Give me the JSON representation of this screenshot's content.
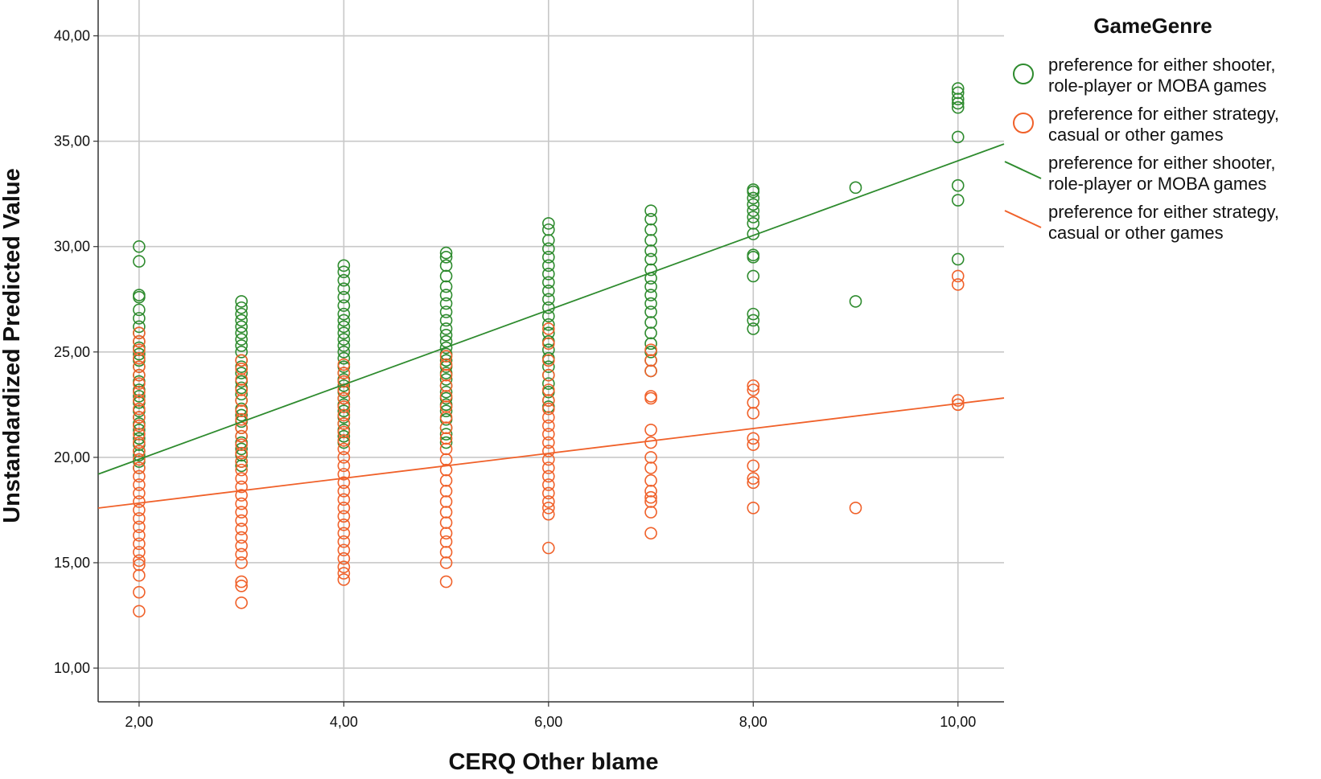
{
  "chart_data": {
    "type": "scatter",
    "title": "",
    "xlabel": "CERQ Other blame",
    "ylabel": "Unstandardized Predicted Value",
    "xlim": [
      1.6,
      10.45
    ],
    "ylim": [
      8.4,
      41.7
    ],
    "x_ticks": [
      2,
      4,
      6,
      8,
      10
    ],
    "x_tick_labels": [
      "2,00",
      "4,00",
      "6,00",
      "8,00",
      "10,00"
    ],
    "y_ticks": [
      10,
      15,
      20,
      25,
      30,
      35,
      40
    ],
    "y_tick_labels": [
      "10,00",
      "15,00",
      "20,00",
      "25,00",
      "30,00",
      "35,00",
      "40,00"
    ],
    "grid": true,
    "legend": {
      "title": "GameGenre",
      "placement": "right",
      "entries": [
        {
          "label_line1": "preference for either shooter,",
          "label_line2": "role-player or MOBA games",
          "marker": "circle",
          "series": 0
        },
        {
          "label_line1": "preference for either strategy,",
          "label_line2": "casual or other games",
          "marker": "circle",
          "series": 1
        },
        {
          "label_line1": "preference for either shooter,",
          "label_line2": "role-player or MOBA games",
          "marker": "line",
          "series": 0
        },
        {
          "label_line1": "preference for either strategy,",
          "label_line2": "casual or other games",
          "marker": "line",
          "series": 1
        }
      ]
    },
    "series": [
      {
        "name": "preference for either shooter, role-player or MOBA games",
        "color": "#2e8b2e",
        "fit_line": {
          "slope": 1.77,
          "intercept": 16.37
        },
        "points": [
          {
            "x": 2,
            "y": [
              30.0,
              29.3,
              27.7,
              27.6,
              27.0,
              26.6,
              26.2,
              25.9,
              25.5,
              25.2,
              24.9,
              24.6,
              24.3,
              23.9,
              23.6,
              23.2,
              22.9,
              22.6,
              22.2,
              21.9,
              21.6,
              21.3,
              20.9,
              20.6,
              20.3,
              20.1,
              19.8,
              19.5
            ]
          },
          {
            "x": 3,
            "y": [
              27.4,
              27.1,
              26.8,
              26.5,
              26.2,
              25.9,
              25.6,
              25.3,
              25.0,
              24.6,
              24.3,
              24.0,
              23.6,
              23.3,
              23.0,
              22.7,
              22.3,
              22.0,
              21.7,
              21.4,
              21.0,
              20.7,
              20.4,
              20.1,
              19.8,
              19.6
            ]
          },
          {
            "x": 4,
            "y": [
              29.1,
              28.8,
              28.4,
              28.0,
              27.6,
              27.2,
              26.8,
              26.5,
              26.2,
              25.9,
              25.6,
              25.3,
              25.0,
              24.7,
              24.3,
              24.0,
              23.7,
              23.4,
              23.1,
              22.8,
              22.5,
              22.2,
              21.9,
              21.6,
              21.3,
              21.0,
              20.7
            ]
          },
          {
            "x": 5,
            "y": [
              29.7,
              29.5,
              29.1,
              28.6,
              28.1,
              27.7,
              27.3,
              26.9,
              26.5,
              26.1,
              25.8,
              25.5,
              25.2,
              24.9,
              24.6,
              24.3,
              24.0,
              23.7,
              23.4,
              23.1,
              22.8,
              22.5,
              22.2,
              21.8,
              21.4,
              21.1,
              20.7
            ]
          },
          {
            "x": 6,
            "y": [
              31.1,
              30.8,
              30.3,
              29.9,
              29.5,
              29.1,
              28.7,
              28.3,
              27.9,
              27.5,
              27.1,
              26.7,
              26.3,
              25.9,
              25.5,
              25.1,
              24.7,
              24.3,
              23.9,
              23.5,
              23.1,
              22.7,
              22.4
            ]
          },
          {
            "x": 7,
            "y": [
              31.7,
              31.3,
              30.8,
              30.3,
              29.8,
              29.4,
              28.9,
              28.5,
              28.1,
              27.7,
              27.3,
              26.9,
              26.4,
              25.9,
              25.4,
              25.0,
              24.6,
              24.1
            ]
          },
          {
            "x": 8,
            "y": [
              32.7,
              32.6,
              32.3,
              32.0,
              31.7,
              31.4,
              31.1,
              30.6,
              29.6,
              29.5,
              28.6,
              26.8,
              26.5,
              26.1
            ]
          },
          {
            "x": 9,
            "y": [
              32.8,
              27.4
            ]
          },
          {
            "x": 10,
            "y": [
              37.5,
              37.3,
              37.0,
              36.8,
              36.6,
              35.2,
              32.9,
              32.2,
              29.4
            ]
          }
        ]
      },
      {
        "name": "preference for either strategy, casual or other games",
        "color": "#f0612a",
        "fit_line": {
          "slope": 0.59,
          "intercept": 16.65
        },
        "points": [
          {
            "x": 2,
            "y": [
              25.9,
              25.5,
              25.1,
              24.7,
              24.3,
              23.9,
              23.5,
              23.1,
              22.7,
              22.3,
              21.9,
              21.5,
              21.1,
              20.7,
              20.3,
              19.9,
              19.5,
              19.1,
              18.7,
              18.3,
              17.9,
              17.5,
              17.1,
              16.7,
              16.3,
              15.9,
              15.5,
              15.1,
              14.9,
              14.4,
              13.6,
              12.7
            ]
          },
          {
            "x": 3,
            "y": [
              24.6,
              24.2,
              23.7,
              23.2,
              22.7,
              22.2,
              21.8,
              21.4,
              21.0,
              20.6,
              20.2,
              19.8,
              19.4,
              19.0,
              18.6,
              18.2,
              17.8,
              17.4,
              17.0,
              16.6,
              16.2,
              15.8,
              15.4,
              15.0,
              14.1,
              13.9,
              13.1
            ]
          },
          {
            "x": 4,
            "y": [
              24.4,
              24.0,
              23.6,
              23.2,
              22.8,
              22.4,
              22.0,
              21.6,
              21.2,
              20.8,
              20.4,
              20.0,
              19.6,
              19.2,
              18.8,
              18.4,
              18.0,
              17.6,
              17.2,
              16.8,
              16.4,
              16.0,
              15.6,
              15.2,
              14.8,
              14.5,
              14.2
            ]
          },
          {
            "x": 5,
            "y": [
              24.8,
              24.4,
              23.9,
              23.4,
              22.9,
              22.4,
              21.9,
              21.4,
              20.9,
              20.4,
              19.9,
              19.4,
              18.9,
              18.4,
              17.9,
              17.4,
              16.9,
              16.4,
              16.0,
              15.5,
              15.0,
              14.1
            ]
          },
          {
            "x": 6,
            "y": [
              26.1,
              25.4,
              24.6,
              23.9,
              23.2,
              22.7,
              22.3,
              21.9,
              21.5,
              21.1,
              20.7,
              20.3,
              19.9,
              19.5,
              19.1,
              18.7,
              18.3,
              17.9,
              17.6,
              17.3,
              15.7
            ]
          },
          {
            "x": 7,
            "y": [
              25.1,
              24.6,
              24.1,
              22.9,
              22.8,
              21.3,
              20.7,
              20.0,
              19.5,
              18.9,
              18.4,
              18.1,
              17.9,
              17.4,
              16.4
            ]
          },
          {
            "x": 8,
            "y": [
              23.4,
              23.2,
              22.6,
              22.1,
              20.9,
              20.6,
              19.6,
              19.0,
              18.8,
              17.6
            ]
          },
          {
            "x": 9,
            "y": [
              17.6
            ]
          },
          {
            "x": 10,
            "y": [
              28.6,
              28.2,
              22.7,
              22.5
            ]
          }
        ]
      }
    ]
  }
}
